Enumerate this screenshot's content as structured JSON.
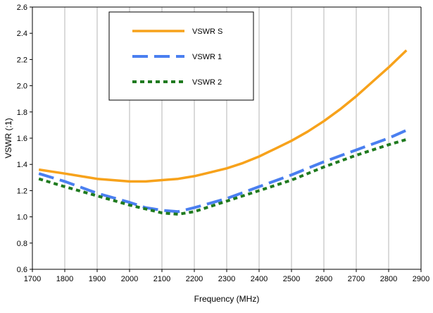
{
  "chart_data": {
    "type": "line",
    "title": "",
    "xlabel": "Frequency (MHz)",
    "ylabel": "VSWR (:1)",
    "xlim": [
      1700,
      2900
    ],
    "ylim": [
      0.6,
      2.6
    ],
    "x_ticks": [
      1700,
      1800,
      1900,
      2000,
      2100,
      2200,
      2300,
      2400,
      2500,
      2600,
      2700,
      2800,
      2900
    ],
    "y_ticks": [
      "0.6",
      "0.8",
      "1.0",
      "1.2",
      "1.4",
      "1.6",
      "1.8",
      "2.0",
      "2.2",
      "2.4",
      "2.6"
    ],
    "grid": "vertical",
    "legend_position": "top-left",
    "series": [
      {
        "name": "VSWR S",
        "color": "#f7a21b",
        "dash": "solid",
        "x": [
          1720,
          1800,
          1900,
          2000,
          2050,
          2100,
          2150,
          2200,
          2250,
          2300,
          2350,
          2400,
          2450,
          2500,
          2550,
          2600,
          2650,
          2700,
          2750,
          2800,
          2855
        ],
        "y": [
          1.36,
          1.33,
          1.29,
          1.27,
          1.27,
          1.28,
          1.29,
          1.31,
          1.34,
          1.37,
          1.41,
          1.46,
          1.52,
          1.58,
          1.65,
          1.73,
          1.82,
          1.92,
          2.03,
          2.14,
          2.27
        ]
      },
      {
        "name": "VSWR 1",
        "color": "#4a7ff0",
        "dash": "long",
        "x": [
          1720,
          1800,
          1900,
          2000,
          2050,
          2100,
          2150,
          2200,
          2300,
          2400,
          2500,
          2600,
          2700,
          2800,
          2855
        ],
        "y": [
          1.33,
          1.27,
          1.18,
          1.11,
          1.07,
          1.05,
          1.04,
          1.07,
          1.14,
          1.23,
          1.32,
          1.42,
          1.51,
          1.6,
          1.66
        ]
      },
      {
        "name": "VSWR 2",
        "color": "#1f7a1f",
        "dash": "short",
        "x": [
          1720,
          1800,
          1900,
          2000,
          2100,
          2150,
          2200,
          2300,
          2400,
          2500,
          2600,
          2700,
          2800,
          2855
        ],
        "y": [
          1.29,
          1.23,
          1.16,
          1.09,
          1.03,
          1.02,
          1.04,
          1.12,
          1.2,
          1.28,
          1.38,
          1.47,
          1.55,
          1.59
        ]
      }
    ]
  }
}
